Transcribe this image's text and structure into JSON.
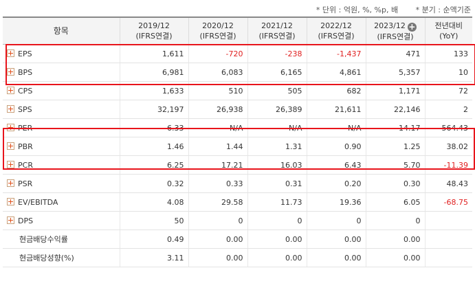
{
  "notes": {
    "unit": "* 단위 : 억원, %, %p, 배",
    "period": "* 분기 : 순액기준"
  },
  "header": {
    "item": "항목",
    "columns": [
      [
        "2019/12",
        "(IFRS연결)"
      ],
      [
        "2020/12",
        "(IFRS연결)"
      ],
      [
        "2021/12",
        "(IFRS연결)"
      ],
      [
        "2022/12",
        "(IFRS연결)"
      ],
      [
        "2023/12",
        "(IFRS연결)"
      ],
      [
        "전년대비",
        "(YoY)"
      ]
    ]
  },
  "rows": [
    {
      "label": "EPS",
      "expand": true,
      "values": [
        "1,611",
        "-720",
        "-238",
        "-1,437",
        "471",
        "133"
      ]
    },
    {
      "label": "BPS",
      "expand": true,
      "values": [
        "6,981",
        "6,083",
        "6,165",
        "4,861",
        "5,357",
        "10"
      ]
    },
    {
      "label": "CPS",
      "expand": true,
      "values": [
        "1,633",
        "510",
        "505",
        "682",
        "1,171",
        "72"
      ]
    },
    {
      "label": "SPS",
      "expand": true,
      "values": [
        "32,197",
        "26,938",
        "26,389",
        "21,611",
        "22,146",
        "2"
      ]
    },
    {
      "label": "PER",
      "expand": true,
      "values": [
        "6.33",
        "N/A",
        "N/A",
        "N/A",
        "14.17",
        "564.43"
      ]
    },
    {
      "label": "PBR",
      "expand": true,
      "values": [
        "1.46",
        "1.44",
        "1.31",
        "0.90",
        "1.25",
        "38.02"
      ]
    },
    {
      "label": "PCR",
      "expand": true,
      "values": [
        "6.25",
        "17.21",
        "16.03",
        "6.43",
        "5.70",
        "-11.39"
      ]
    },
    {
      "label": "PSR",
      "expand": true,
      "values": [
        "0.32",
        "0.33",
        "0.31",
        "0.20",
        "0.30",
        "48.43"
      ]
    },
    {
      "label": "EV/EBITDA",
      "expand": true,
      "values": [
        "4.08",
        "29.58",
        "11.73",
        "19.36",
        "6.05",
        "-68.75"
      ]
    },
    {
      "label": "DPS",
      "expand": true,
      "values": [
        "50",
        "0",
        "0",
        "0",
        "0",
        ""
      ]
    },
    {
      "label": "현금배당수익률",
      "expand": false,
      "values": [
        "0.49",
        "0.00",
        "0.00",
        "0.00",
        "0.00",
        ""
      ]
    },
    {
      "label": "현금배당성향(%)",
      "expand": false,
      "values": [
        "3.11",
        "0.00",
        "0.00",
        "0.00",
        "0.00",
        ""
      ]
    }
  ],
  "colors": {
    "highlight_box": "#e8141b",
    "negative": "#e02020"
  }
}
